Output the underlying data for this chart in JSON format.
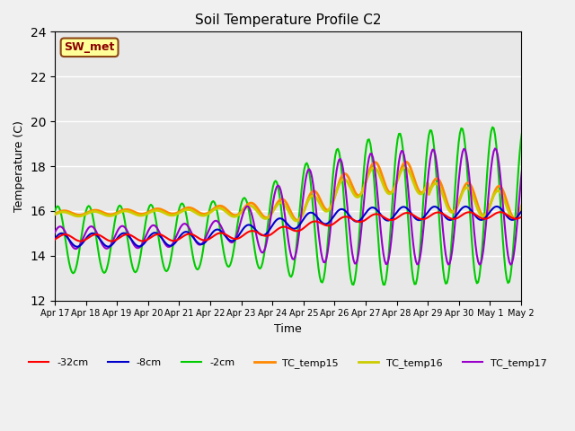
{
  "title": "Soil Temperature Profile C2",
  "xlabel": "Time",
  "ylabel": "Temperature (C)",
  "ylim": [
    12,
    24
  ],
  "yticks": [
    12,
    14,
    16,
    18,
    20,
    22,
    24
  ],
  "bg_color": "#e8e8e8",
  "annotation_text": "SW_met",
  "annotation_bg": "#ffff99",
  "annotation_border": "#8B4513",
  "annotation_text_color": "#8B0000",
  "x_tick_labels": [
    "Apr 17",
    "Apr 18",
    "Apr 19",
    "Apr 20",
    "Apr 21",
    "Apr 22",
    "Apr 23",
    "Apr 24",
    "Apr 25",
    "Apr 26",
    "Apr 27",
    "Apr 28",
    "Apr 29",
    "Apr 30",
    "May 1",
    "May 2"
  ],
  "series": {
    "-32cm": {
      "color": "#ff0000",
      "lw": 1.5
    },
    "-8cm": {
      "color": "#0000cc",
      "lw": 1.5
    },
    "-2cm": {
      "color": "#00cc00",
      "lw": 1.5
    },
    "TC_temp15": {
      "color": "#ff8800",
      "lw": 2.0
    },
    "TC_temp16": {
      "color": "#cccc00",
      "lw": 2.0
    },
    "TC_temp17": {
      "color": "#9900cc",
      "lw": 1.5
    }
  },
  "legend_order": [
    "-32cm",
    "-8cm",
    "-2cm",
    "TC_temp15",
    "TC_temp16",
    "TC_temp17"
  ]
}
